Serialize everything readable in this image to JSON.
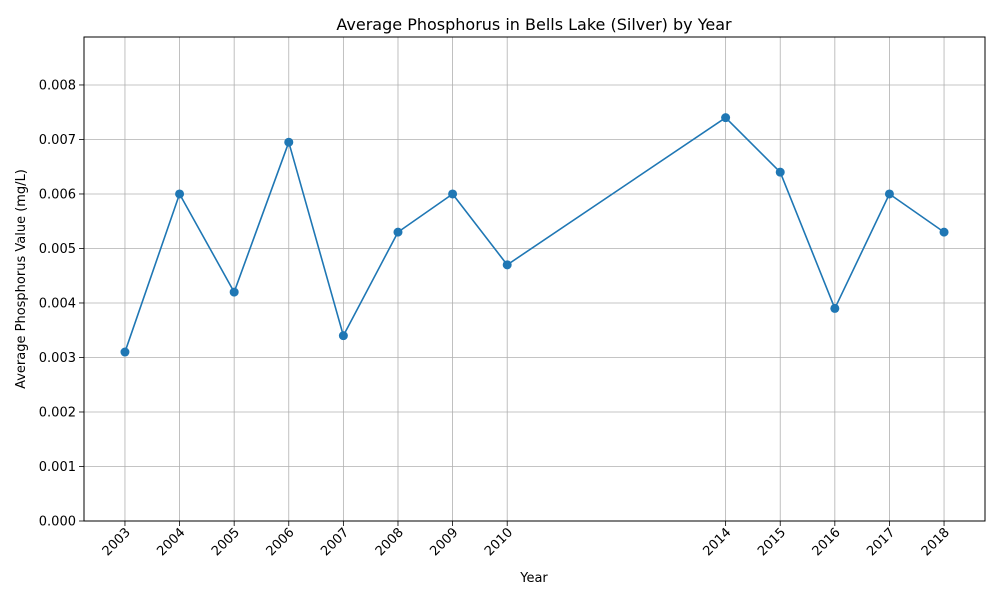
{
  "chart_data": {
    "type": "line",
    "title": "Average Phosphorus in Bells Lake (Silver) by Year",
    "xlabel": "Year",
    "ylabel": "Average Phosphorus Value (mg/L)",
    "x": [
      2003,
      2004,
      2005,
      2006,
      2007,
      2008,
      2009,
      2010,
      2014,
      2015,
      2016,
      2017,
      2018
    ],
    "x_tick_labels": [
      "2003",
      "2004",
      "2005",
      "2006",
      "2007",
      "2008",
      "2009",
      "2010",
      "2014",
      "2015",
      "2016",
      "2017",
      "2018"
    ],
    "series": [
      {
        "values": [
          0.0031,
          0.006,
          0.0042,
          0.00695,
          0.0034,
          0.0053,
          0.006,
          0.0047,
          0.0074,
          0.0064,
          0.0039,
          0.006,
          0.0053
        ]
      }
    ],
    "y_ticks": [
      0,
      0.001,
      0.002,
      0.003,
      0.004,
      0.005,
      0.006,
      0.007,
      0.008
    ],
    "y_tick_labels": [
      "0.000",
      "0.001",
      "0.002",
      "0.003",
      "0.004",
      "0.005",
      "0.006",
      "0.007",
      "0.008"
    ],
    "xlim": [
      2002.25,
      2018.75
    ],
    "ylim": [
      0,
      0.00888
    ],
    "grid": true,
    "colors": {
      "line": "#1f77b4",
      "grid": "#b0b0b0"
    }
  }
}
